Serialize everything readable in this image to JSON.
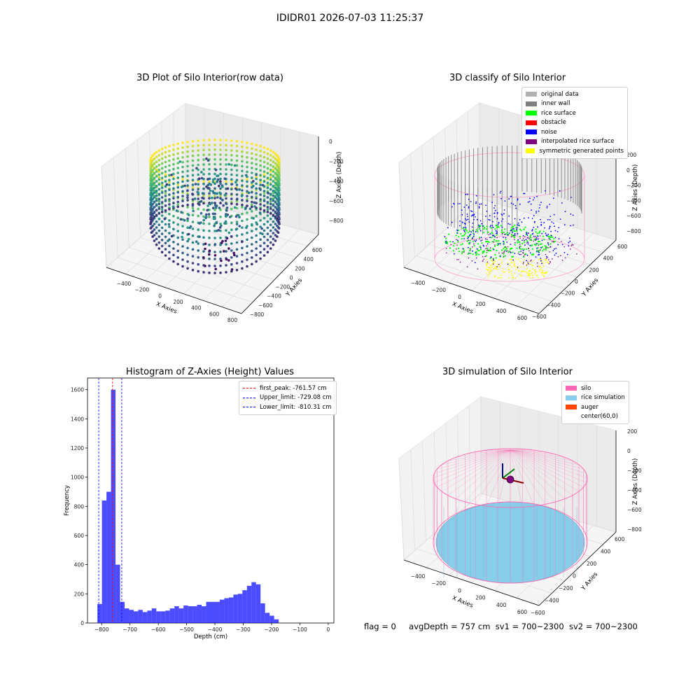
{
  "figure": {
    "suptitle": "IDIDR01 2026-07-03 11:25:37",
    "footer": {
      "flag": "flag = 0",
      "avg_depth": "avgDepth = 757 cm",
      "sv1": "sv1 = 700~2300",
      "sv2": "sv2 = 700~2300"
    }
  },
  "panels": {
    "raw": {
      "title": "3D Plot of Silo Interior(row data)",
      "xlabel": "X Axies",
      "ylabel": "Y Axies",
      "zlabel": "Z Axies (Depth)",
      "xticks": [
        "−400",
        "−200",
        "0",
        "200",
        "400",
        "600",
        "800"
      ],
      "yticks": [
        "−800",
        "−600",
        "−400",
        "−200",
        "0",
        "200",
        "400",
        "600"
      ],
      "zticks": [
        "0",
        "−200",
        "−400",
        "−600",
        "−800"
      ],
      "colormap": "viridis"
    },
    "classify": {
      "title": "3D classify of Silo Interior",
      "xlabel": "X Axies",
      "ylabel": "Y Axies",
      "zlabel": "Z Axies (Depth)",
      "xticks": [
        "−400",
        "−200",
        "0",
        "200",
        "400",
        "600"
      ],
      "yticks": [
        "−600",
        "−400",
        "−200",
        "0",
        "200",
        "400",
        "600"
      ],
      "zticks": [
        "200",
        "0",
        "−200",
        "−400",
        "−600",
        "−800"
      ],
      "legend": [
        {
          "label": "original data",
          "color": "#b0b0b0"
        },
        {
          "label": "inner wall",
          "color": "#808080"
        },
        {
          "label": "rice surface",
          "color": "#00ff00"
        },
        {
          "label": "obstacle",
          "color": "#ff0000"
        },
        {
          "label": "noise",
          "color": "#0000ff"
        },
        {
          "label": "interpolated rice surface",
          "color": "#800080"
        },
        {
          "label": "symmetric generated points",
          "color": "#ffff00"
        }
      ]
    },
    "simulation": {
      "title": "3D simulation of Silo Interior",
      "xlabel": "X Axies",
      "ylabel": "Y Axies",
      "zlabel": "Z Axies (Depth)",
      "xticks": [
        "−400",
        "−200",
        "0",
        "200",
        "400",
        "600"
      ],
      "yticks": [
        "−600",
        "−400",
        "−200",
        "0",
        "200",
        "400",
        "600"
      ],
      "zticks": [
        "200",
        "0",
        "−200",
        "−400",
        "−600",
        "−800"
      ],
      "legend": [
        {
          "label": "silo",
          "color": "#ff69b4"
        },
        {
          "label": "rice simulation",
          "color": "#87ceeb"
        },
        {
          "label": "auger",
          "color": "#ff4500"
        },
        {
          "label": "center(60,0)",
          "color": ""
        }
      ]
    }
  },
  "chart_data": [
    {
      "type": "bar",
      "title": "Histogram of Z-Axies (Height) Values",
      "xlabel": "Depth (cm)",
      "ylabel": "Frequency",
      "xlim": [
        -850,
        20
      ],
      "ylim": [
        0,
        1680
      ],
      "xticks": [
        -800,
        -700,
        -600,
        -500,
        -400,
        -300,
        -200,
        -100,
        0
      ],
      "yticks": [
        0,
        200,
        400,
        600,
        800,
        1000,
        1200,
        1400,
        1600
      ],
      "bin_start": -815,
      "bin_width": 16,
      "bar_color": "#0000ff",
      "values": [
        130,
        840,
        900,
        1600,
        400,
        145,
        100,
        90,
        80,
        90,
        75,
        85,
        100,
        80,
        80,
        85,
        100,
        115,
        100,
        120,
        115,
        115,
        125,
        115,
        145,
        145,
        145,
        160,
        170,
        175,
        195,
        200,
        225,
        255,
        280,
        265,
        135,
        70,
        50,
        25
      ],
      "lines": [
        {
          "label": "first_peak: -761.57 cm",
          "x": -761.57,
          "color": "#ff0000"
        },
        {
          "label": "Upper_limit: -729.08 cm",
          "x": -729.08,
          "color": "#0000ff"
        },
        {
          "label": "Lower_limit: -810.31 cm",
          "x": -810.31,
          "color": "#0000ff"
        }
      ]
    }
  ]
}
